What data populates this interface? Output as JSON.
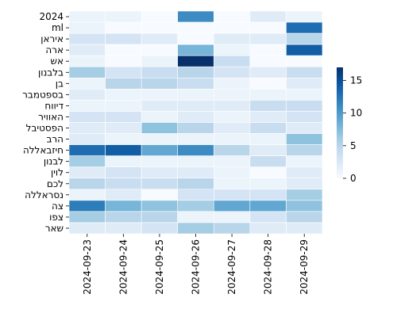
{
  "chart_data": {
    "type": "heatmap",
    "title": "",
    "xlabel": "",
    "ylabel": "",
    "x": [
      "2024-09-23",
      "2024-09-24",
      "2024-09-25",
      "2024-09-26",
      "2024-09-27",
      "2024-09-28",
      "2024-09-29"
    ],
    "y": [
      "2024",
      "ml",
      "איראן",
      "ארה",
      "אש",
      "בלבנון",
      "בן",
      "בספטמבר",
      "דיווח",
      "האוויר",
      "הפסטיבל",
      "הרב",
      "חיזבאללה",
      "לבנון",
      "לוין",
      "לכם",
      "נסראללה",
      "צה",
      "צפו",
      "שאר"
    ],
    "values": [
      [
        1,
        1,
        0,
        11,
        0,
        2,
        1
      ],
      [
        1,
        0,
        0,
        0,
        0,
        0,
        13
      ],
      [
        3,
        3,
        2,
        0,
        2,
        2,
        5
      ],
      [
        2,
        0,
        0,
        8,
        1,
        0,
        14
      ],
      [
        1,
        0,
        1,
        17,
        4,
        0,
        0
      ],
      [
        6,
        3,
        4,
        5,
        3,
        2,
        4
      ],
      [
        1,
        5,
        5,
        4,
        1,
        0,
        2
      ],
      [
        2,
        1,
        1,
        1,
        1,
        1,
        1
      ],
      [
        1,
        1,
        2,
        2,
        2,
        4,
        4
      ],
      [
        3,
        3,
        1,
        2,
        1,
        2,
        3
      ],
      [
        2,
        2,
        7,
        5,
        2,
        4,
        2
      ],
      [
        2,
        1,
        1,
        1,
        1,
        1,
        7
      ],
      [
        13,
        14,
        9,
        11,
        5,
        2,
        5
      ],
      [
        6,
        1,
        1,
        1,
        1,
        4,
        1
      ],
      [
        2,
        3,
        2,
        2,
        1,
        0,
        2
      ],
      [
        5,
        4,
        4,
        5,
        1,
        1,
        2
      ],
      [
        1,
        2,
        0,
        3,
        3,
        3,
        6
      ],
      [
        12,
        8,
        7,
        6,
        9,
        9,
        7
      ],
      [
        6,
        5,
        5,
        1,
        1,
        3,
        5
      ],
      [
        2,
        2,
        3,
        6,
        5,
        2,
        2
      ]
    ],
    "colorbar": {
      "min": 0,
      "max": 17,
      "ticks": [
        0,
        5,
        10,
        15
      ],
      "colormap": "Blues"
    },
    "grid": true
  }
}
